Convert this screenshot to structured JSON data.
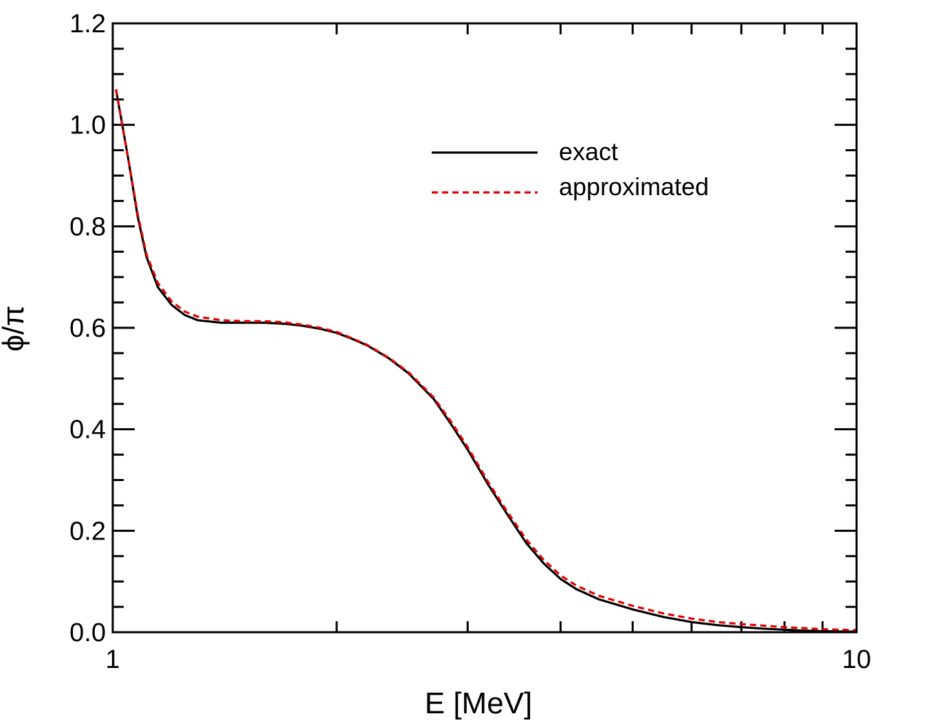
{
  "chart_data": {
    "type": "line",
    "xlabel": "E [MeV]",
    "ylabel": "ϕ/π",
    "xscale": "log",
    "xlim": [
      1,
      10
    ],
    "ylim": [
      0.0,
      1.2
    ],
    "x_ticks": [
      {
        "value": 1,
        "label": "1"
      },
      {
        "value": 10,
        "label": "10"
      }
    ],
    "y_ticks": [
      {
        "value": 0.0,
        "label": "0.0"
      },
      {
        "value": 0.2,
        "label": "0.2"
      },
      {
        "value": 0.4,
        "label": "0.4"
      },
      {
        "value": 0.6,
        "label": "0.6"
      },
      {
        "value": 0.8,
        "label": "0.8"
      },
      {
        "value": 1.0,
        "label": "1.0"
      },
      {
        "value": 1.2,
        "label": "1.2"
      }
    ],
    "grid": false,
    "legend_position": "top-right",
    "series": [
      {
        "name": "exact",
        "color": "#000000",
        "style": "solid",
        "x": [
          1.01,
          1.03,
          1.05,
          1.08,
          1.11,
          1.15,
          1.2,
          1.25,
          1.3,
          1.4,
          1.5,
          1.6,
          1.7,
          1.8,
          1.9,
          2.0,
          2.1,
          2.2,
          2.35,
          2.5,
          2.7,
          2.85,
          3.0,
          3.2,
          3.4,
          3.6,
          3.8,
          4.0,
          4.2,
          4.5,
          5.0,
          5.5,
          6.0,
          6.5,
          7.0,
          7.5,
          8.0,
          8.5,
          9.0,
          10.0
        ],
        "y": [
          1.07,
          1.0,
          0.93,
          0.82,
          0.74,
          0.68,
          0.645,
          0.625,
          0.615,
          0.61,
          0.61,
          0.61,
          0.608,
          0.604,
          0.598,
          0.59,
          0.578,
          0.565,
          0.54,
          0.51,
          0.46,
          0.41,
          0.36,
          0.29,
          0.23,
          0.175,
          0.135,
          0.105,
          0.085,
          0.065,
          0.045,
          0.03,
          0.02,
          0.014,
          0.01,
          0.007,
          0.005,
          0.003,
          0.002,
          0.001
        ]
      },
      {
        "name": "approximated",
        "color": "#e00000",
        "style": "dashed",
        "x": [
          1.01,
          1.03,
          1.05,
          1.08,
          1.11,
          1.15,
          1.2,
          1.25,
          1.3,
          1.4,
          1.5,
          1.6,
          1.7,
          1.8,
          1.9,
          2.0,
          2.1,
          2.2,
          2.35,
          2.5,
          2.7,
          2.85,
          3.0,
          3.2,
          3.4,
          3.6,
          3.8,
          4.0,
          4.2,
          4.5,
          5.0,
          5.5,
          6.0,
          6.5,
          7.0,
          7.5,
          8.0,
          8.5,
          9.0,
          10.0
        ],
        "y": [
          1.07,
          1.0,
          0.93,
          0.825,
          0.745,
          0.688,
          0.652,
          0.632,
          0.622,
          0.615,
          0.613,
          0.613,
          0.611,
          0.606,
          0.6,
          0.592,
          0.579,
          0.566,
          0.541,
          0.512,
          0.463,
          0.415,
          0.365,
          0.295,
          0.235,
          0.182,
          0.142,
          0.112,
          0.092,
          0.072,
          0.052,
          0.037,
          0.027,
          0.02,
          0.016,
          0.013,
          0.01,
          0.008,
          0.006,
          0.004
        ]
      }
    ]
  }
}
